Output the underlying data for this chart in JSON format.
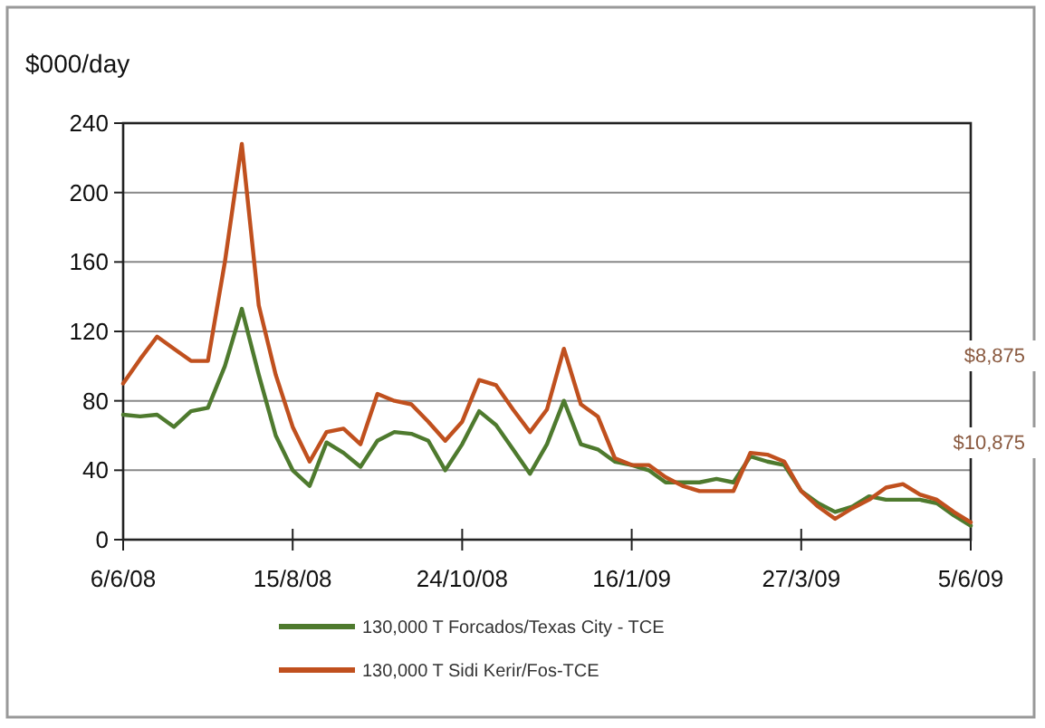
{
  "chart_data": {
    "type": "line",
    "ylabel": "$000/day",
    "categories": [
      "6/6/08",
      null,
      null,
      null,
      null,
      null,
      null,
      null,
      null,
      null,
      "15/8/08",
      null,
      null,
      null,
      null,
      null,
      null,
      null,
      null,
      null,
      "24/10/08",
      null,
      null,
      null,
      null,
      null,
      null,
      null,
      null,
      null,
      "16/1/09",
      null,
      null,
      null,
      null,
      null,
      null,
      null,
      null,
      null,
      "27/3/09",
      null,
      null,
      null,
      null,
      null,
      null,
      null,
      null,
      null,
      "5/6/09"
    ],
    "series": [
      {
        "name": "130,000 T Forcados/Texas City - TCE",
        "color": "#4e7a2e",
        "values": [
          72,
          71,
          72,
          65,
          74,
          76,
          100,
          133,
          95,
          60,
          40,
          31,
          56,
          50,
          42,
          57,
          62,
          61,
          57,
          40,
          55,
          74,
          66,
          52,
          38,
          55,
          80,
          55,
          52,
          45,
          43,
          40,
          33,
          33,
          33,
          35,
          33,
          48,
          45,
          43,
          28,
          21,
          16,
          19,
          25,
          23,
          23,
          23,
          21,
          14,
          8
        ]
      },
      {
        "name": "130,000 T Sidi Kerir/Fos-TCE",
        "color": "#c0501e",
        "values": [
          90,
          104,
          117,
          110,
          103,
          103,
          160,
          228,
          135,
          95,
          65,
          45,
          62,
          64,
          55,
          84,
          80,
          78,
          68,
          57,
          68,
          92,
          89,
          75,
          62,
          75,
          110,
          78,
          71,
          47,
          43,
          43,
          36,
          31,
          28,
          28,
          28,
          50,
          49,
          45,
          28,
          19,
          12,
          18,
          23,
          30,
          32,
          26,
          23,
          16,
          10
        ]
      }
    ],
    "ylim": [
      0,
      240
    ],
    "yticks": [
      0,
      40,
      80,
      120,
      160,
      200,
      240
    ],
    "grid": "y",
    "legend": "bottom",
    "line_style": "solid",
    "marker": "none",
    "annotations": [
      "$8,875",
      "$10,875"
    ]
  }
}
